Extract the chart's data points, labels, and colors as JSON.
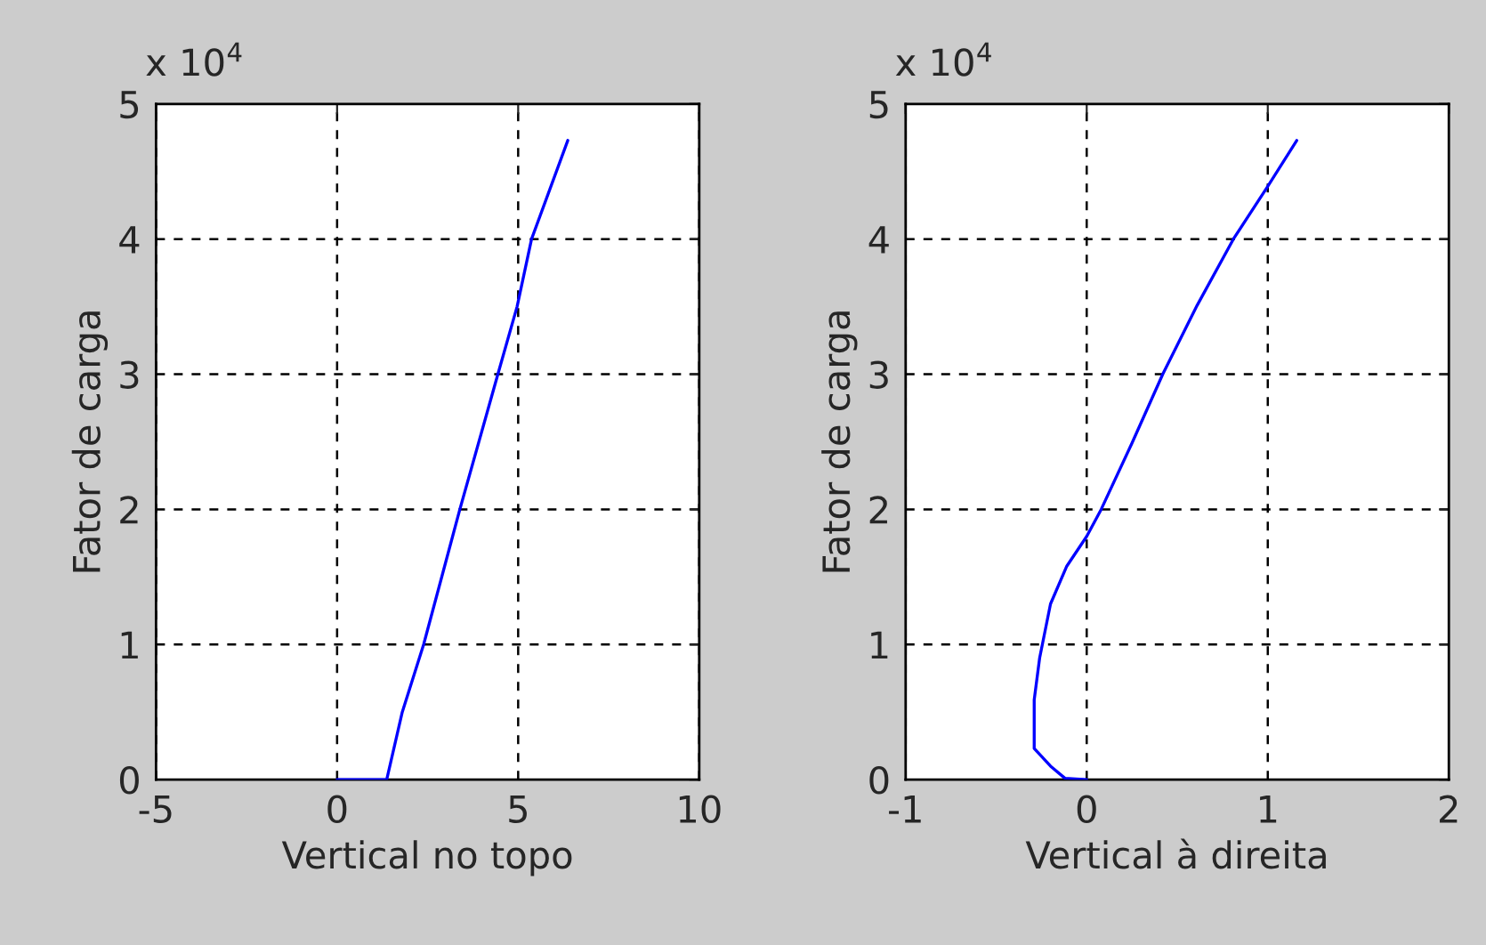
{
  "chart_data": [
    {
      "type": "line",
      "xlabel": "Vertical no topo",
      "ylabel": "Fator de carga",
      "annotations": [
        "x 10$^{4}$"
      ],
      "series": [
        {
          "color": "#0000ff",
          "x": [
            0,
            1.37,
            1.8,
            2.39,
            3.39,
            4.44,
            4.97,
            5.37,
            6.37
          ],
          "values": [
            0,
            0,
            0.5,
            1,
            2,
            3,
            3.5,
            4,
            4.73
          ]
        }
      ],
      "xlim": [
        -5,
        10
      ],
      "xticks": [
        -5,
        0,
        5,
        10
      ],
      "ylim": [
        0,
        5
      ],
      "yticks": [
        0,
        1,
        2,
        3,
        4,
        5
      ],
      "grid": true,
      "line_style": "solid",
      "marker": "none"
    },
    {
      "type": "line",
      "xlabel": "Vertical à direita",
      "ylabel": "Fator de carga",
      "annotations": [
        "x 10$^{4}$"
      ],
      "series": [
        {
          "color": "#0000ff",
          "x": [
            0,
            -0.12,
            -0.2,
            -0.29,
            -0.29,
            -0.26,
            -0.2,
            -0.11,
            0,
            0.08,
            0.25,
            0.42,
            0.61,
            0.81,
            1.0,
            1.16
          ],
          "values": [
            0,
            0.01,
            0.1,
            0.23,
            0.59,
            0.9,
            1.3,
            1.58,
            1.8,
            2.0,
            2.49,
            3.0,
            3.51,
            4.0,
            4.39,
            4.73
          ]
        }
      ],
      "xlim": [
        -1,
        2
      ],
      "xticks": [
        -1,
        0,
        1,
        2
      ],
      "ylim": [
        0,
        5
      ],
      "yticks": [
        0,
        1,
        2,
        3,
        4,
        5
      ],
      "grid": true,
      "line_style": "solid",
      "marker": "none"
    }
  ]
}
